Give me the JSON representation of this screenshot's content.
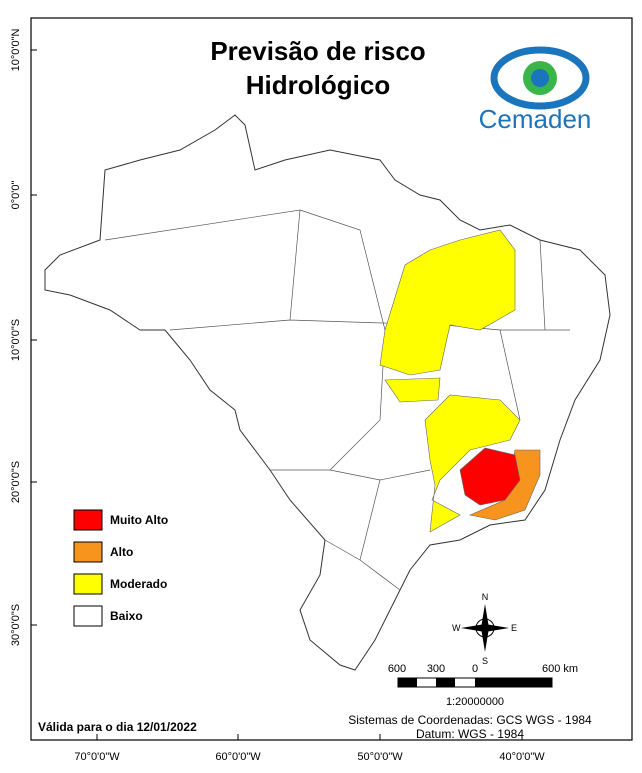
{
  "title": [
    "Previsão de risco",
    "Hidrológico"
  ],
  "logo": "Cemaden",
  "legend": [
    {
      "label": "Muito Alto",
      "color": "#ff0000"
    },
    {
      "label": "Alto",
      "color": "#f7941d"
    },
    {
      "label": "Moderado",
      "color": "#ffff00"
    },
    {
      "label": "Baixo",
      "color": "#ffffff"
    }
  ],
  "graticule": {
    "left": [
      "10°0'0\"N",
      "0°0'0\"",
      "10°0'0\"S",
      "20°0'0\"S",
      "30°0'0\"S"
    ],
    "bottom": [
      "70°0'0\"W",
      "60°0'0\"W",
      "50°0'0\"W",
      "40°0'0\"W"
    ]
  },
  "compass": [
    "N",
    "E",
    "S",
    "W"
  ],
  "scale_bar": {
    "labels": [
      "600",
      "300",
      "0",
      "600 km"
    ],
    "ratio": "1:20000000"
  },
  "validity": "Válida para o dia 12/01/2022",
  "coordinate_system": [
    "Sistemas de Coordenadas: GCS WGS - 1984",
    "Datum: WGS - 1984"
  ]
}
